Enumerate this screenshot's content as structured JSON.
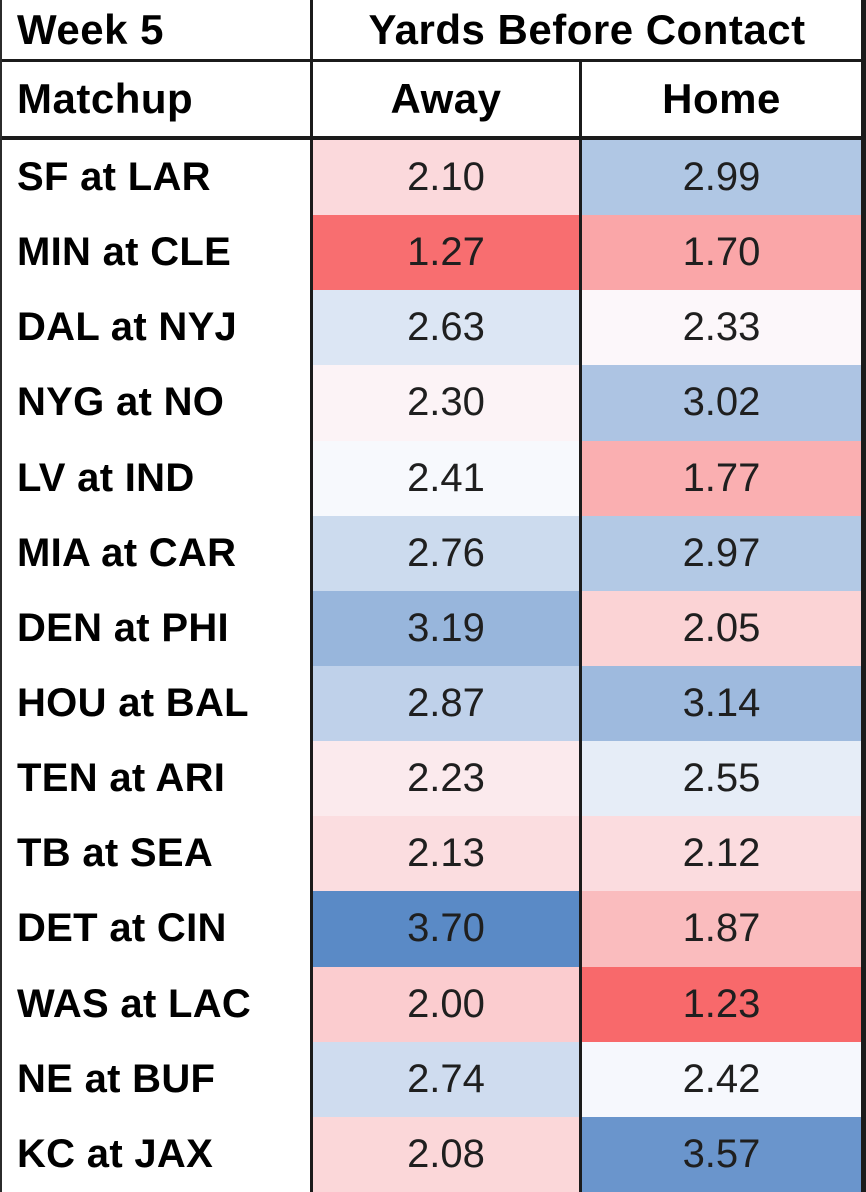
{
  "title": {
    "week": "Week 5",
    "group": "Yards Before Contact"
  },
  "headers": {
    "matchup": "Matchup",
    "away": "Away",
    "home": "Home"
  },
  "rows": [
    {
      "matchup": "SF at LAR",
      "away": "2.10",
      "home": "2.99",
      "away_bg": "#FBD9DC",
      "home_bg": "#B0C7E4"
    },
    {
      "matchup": "MIN at CLE",
      "away": "1.27",
      "home": "1.70",
      "away_bg": "#F86E70",
      "home_bg": "#FAA6A8"
    },
    {
      "matchup": "DAL at NYJ",
      "away": "2.63",
      "home": "2.33",
      "away_bg": "#DCE6F4",
      "home_bg": "#FCF7FA"
    },
    {
      "matchup": "NYG at NO",
      "away": "2.30",
      "home": "3.02",
      "away_bg": "#FCF3F6",
      "home_bg": "#ADC4E3"
    },
    {
      "matchup": "LV at IND",
      "away": "2.41",
      "home": "1.77",
      "away_bg": "#F7F9FD",
      "home_bg": "#FAAFB1"
    },
    {
      "matchup": "MIA at CAR",
      "away": "2.76",
      "home": "2.97",
      "away_bg": "#CCDBEE",
      "home_bg": "#B3C9E5"
    },
    {
      "matchup": "DEN at PHI",
      "away": "3.19",
      "home": "2.05",
      "away_bg": "#98B6DC",
      "home_bg": "#FBD3D5"
    },
    {
      "matchup": "HOU at BAL",
      "away": "2.87",
      "home": "3.14",
      "away_bg": "#BFD1EA",
      "home_bg": "#9EBADE"
    },
    {
      "matchup": "TEN at ARI",
      "away": "2.23",
      "home": "2.55",
      "away_bg": "#FBEAED",
      "home_bg": "#E6EDF7"
    },
    {
      "matchup": "TB at SEA",
      "away": "2.13",
      "home": "2.12",
      "away_bg": "#FBDDE0",
      "home_bg": "#FBDCDF"
    },
    {
      "matchup": "DET at CIN",
      "away": "3.70",
      "home": "1.87",
      "away_bg": "#5A8AC6",
      "home_bg": "#FABCBE"
    },
    {
      "matchup": "WAS at LAC",
      "away": "2.00",
      "home": "1.23",
      "away_bg": "#FBCCCF",
      "home_bg": "#F8696B"
    },
    {
      "matchup": "NE at BUF",
      "away": "2.74",
      "home": "2.42",
      "away_bg": "#CFDCEF",
      "home_bg": "#F6F8FD"
    },
    {
      "matchup": "KC at JAX",
      "away": "2.08",
      "home": "3.57",
      "away_bg": "#FBD7D9",
      "home_bg": "#6A95CC"
    }
  ],
  "colors": {
    "border": "#1b1b1b",
    "text": "#1f1f1f",
    "scale_low": "#F8696B",
    "scale_mid": "#FCFCFF",
    "scale_high": "#5A8AC6"
  },
  "chart_data": {
    "type": "heatmap",
    "title": "Week 5 — Yards Before Contact",
    "categories": [
      "SF at LAR",
      "MIN at CLE",
      "DAL at NYJ",
      "NYG at NO",
      "LV at IND",
      "MIA at CAR",
      "DEN at PHI",
      "HOU at BAL",
      "TEN at ARI",
      "TB at SEA",
      "DET at CIN",
      "WAS at LAC",
      "NE at BUF",
      "KC at JAX"
    ],
    "series": [
      {
        "name": "Away",
        "values": [
          2.1,
          1.27,
          2.63,
          2.3,
          2.41,
          2.76,
          3.19,
          2.87,
          2.23,
          2.13,
          3.7,
          2.0,
          2.74,
          2.08
        ]
      },
      {
        "name": "Home",
        "values": [
          2.99,
          1.7,
          2.33,
          3.02,
          1.77,
          2.97,
          2.05,
          3.14,
          2.55,
          2.12,
          1.87,
          1.23,
          2.42,
          3.57
        ]
      }
    ],
    "value_format": "0.00",
    "color_scale": {
      "low": "#F8696B",
      "mid": "#FCFCFF",
      "high": "#5A8AC6",
      "domain": [
        1.23,
        2.37,
        3.7
      ]
    },
    "legend": "none",
    "grid": "column borders only"
  }
}
